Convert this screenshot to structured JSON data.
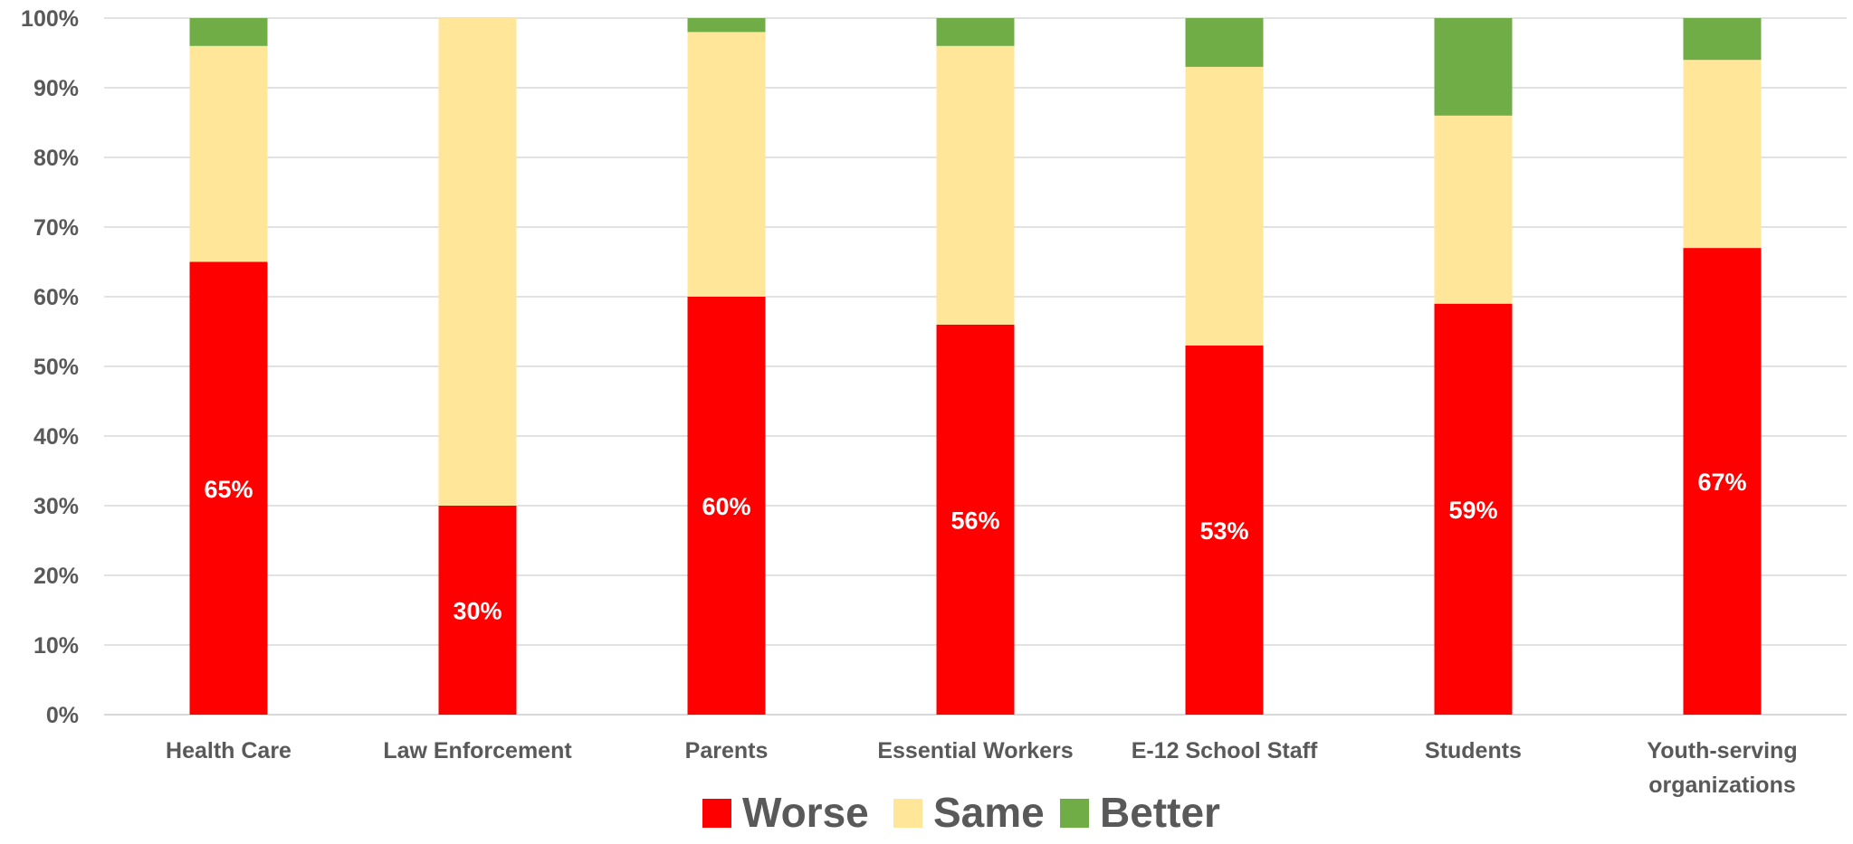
{
  "chart_data": {
    "type": "bar",
    "stacked": true,
    "percent": true,
    "categories": [
      "Health Care",
      "Law Enforcement",
      "Parents",
      "Essential Workers",
      "E-12 School Staff",
      "Students",
      "Youth-serving organizations"
    ],
    "series": [
      {
        "name": "Worse",
        "color": "#ff0000",
        "values": [
          65,
          30,
          60,
          56,
          53,
          59,
          67
        ]
      },
      {
        "name": "Same",
        "color": "#ffe699",
        "values": [
          31,
          70,
          38,
          40,
          40,
          27,
          27
        ]
      },
      {
        "name": "Better",
        "color": "#70ad47",
        "values": [
          4,
          0,
          2,
          4,
          7,
          14,
          6
        ]
      }
    ],
    "data_labels": [
      "65%",
      "30%",
      "60%",
      "56%",
      "53%",
      "59%",
      "67%"
    ],
    "y_ticks": [
      "0%",
      "10%",
      "20%",
      "30%",
      "40%",
      "50%",
      "60%",
      "70%",
      "80%",
      "90%",
      "100%"
    ],
    "ylim": [
      0,
      100
    ],
    "title": "",
    "xlabel": "",
    "ylabel": "",
    "grid": true,
    "legend_position": "bottom"
  }
}
